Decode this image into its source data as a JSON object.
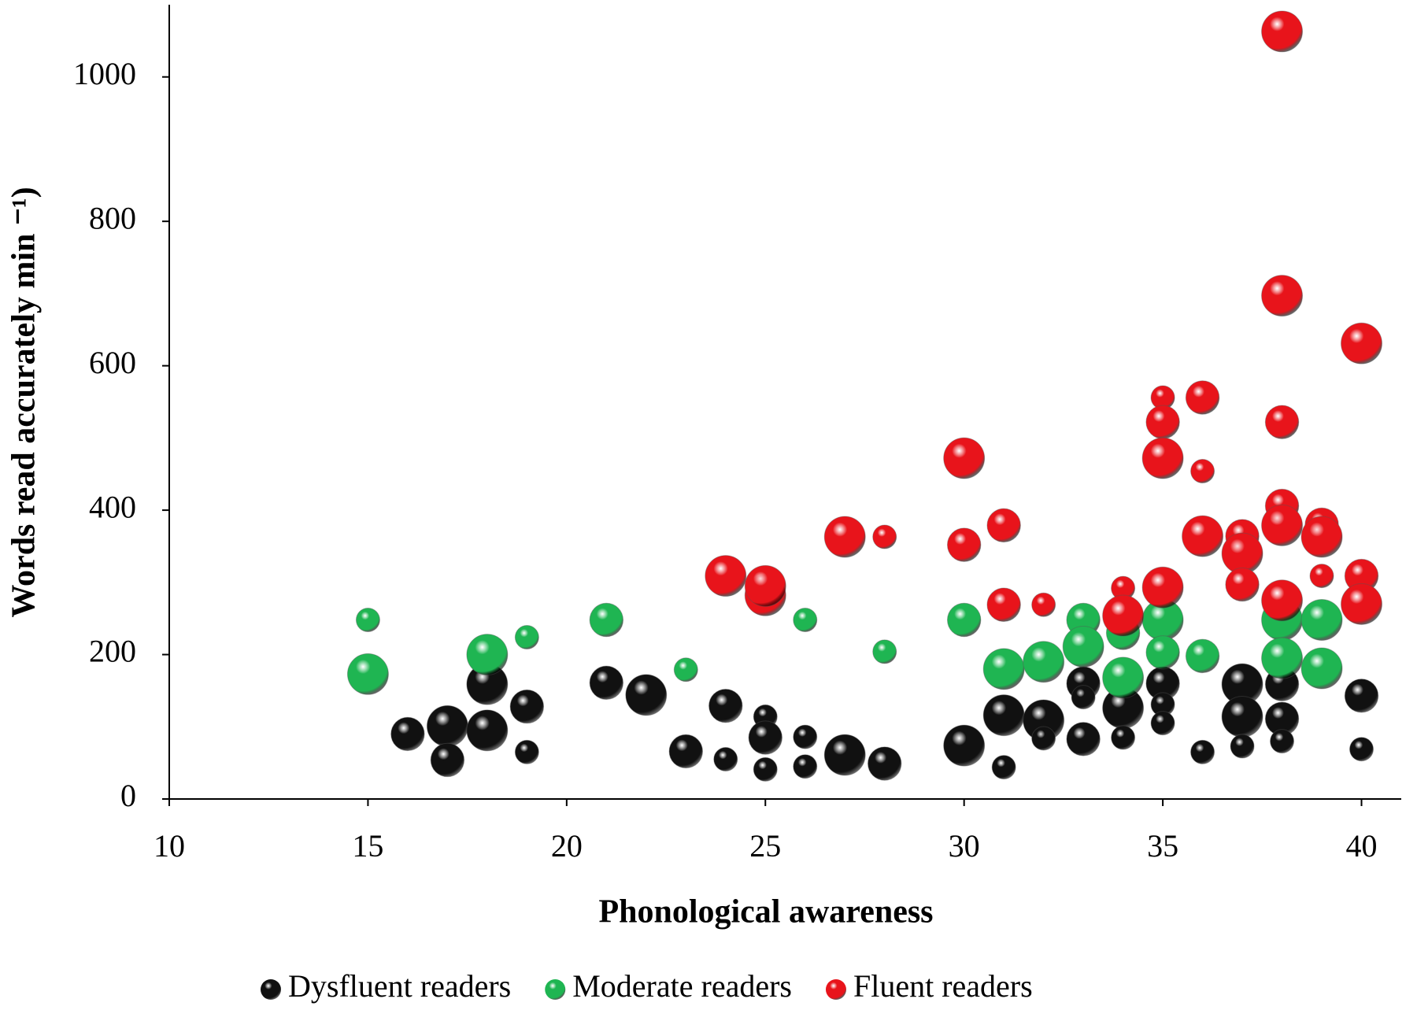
{
  "chart_data": {
    "type": "bubble",
    "x_label": "Phonological awareness",
    "y_label": "Words read accurately min ⁻¹)",
    "xlim": [
      10,
      41
    ],
    "xticks": [
      10,
      15,
      20,
      25,
      30,
      35,
      40
    ],
    "ylim": [
      0,
      1100
    ],
    "yticks": [
      0,
      200,
      400,
      600,
      800,
      1000
    ],
    "legend": "bottom",
    "series": [
      {
        "name": "Dysfluent readers",
        "color": "#111111",
        "x": [
          16,
          17,
          17,
          18,
          18,
          19,
          19,
          21,
          22,
          23,
          24,
          24,
          25,
          25,
          25,
          26,
          26,
          27,
          28,
          30,
          31,
          31,
          32,
          32,
          33,
          33,
          33,
          34,
          34,
          35,
          35,
          35,
          36,
          37,
          37,
          37,
          38,
          38,
          38,
          40,
          40
        ],
        "values": [
          90,
          101,
          54,
          159,
          95,
          128,
          65,
          161,
          144,
          66,
          129,
          55,
          114,
          85,
          41,
          86,
          45,
          61,
          49,
          74,
          116,
          44,
          109,
          84,
          160,
          141,
          83,
          126,
          85,
          160,
          131,
          105,
          65,
          159,
          114,
          73,
          159,
          111,
          80,
          143,
          69
        ],
        "sizes": [
          2,
          3,
          2,
          3,
          3,
          2,
          1,
          2,
          3,
          2,
          2,
          1,
          1,
          2,
          1,
          1,
          1,
          3,
          2,
          3,
          3,
          1,
          3,
          1,
          2,
          1,
          2,
          3,
          1,
          2,
          1,
          1,
          1,
          3,
          3,
          1,
          2,
          2,
          1,
          2,
          1
        ]
      },
      {
        "name": "Moderate readers",
        "color": "#1fb552",
        "x": [
          15,
          15,
          18,
          19,
          21,
          23,
          26,
          28,
          30,
          31,
          32,
          33,
          33,
          34,
          34,
          35,
          35,
          36,
          38,
          38,
          39,
          39
        ],
        "values": [
          248,
          173,
          200,
          224,
          248,
          179,
          248,
          204,
          248,
          180,
          190,
          248,
          211,
          230,
          168,
          248,
          203,
          198,
          248,
          195,
          248,
          181
        ],
        "sizes": [
          1,
          3,
          3,
          1,
          2,
          1,
          1,
          1,
          2,
          3,
          3,
          2,
          3,
          2,
          3,
          3,
          2,
          2,
          3,
          3,
          3,
          3
        ]
      },
      {
        "name": "Fluent readers",
        "color": "#e8141b",
        "x": [
          24,
          25,
          25,
          27,
          28,
          30,
          30,
          31,
          31,
          32,
          34,
          34,
          35,
          35,
          35,
          35,
          36,
          36,
          36,
          37,
          37,
          37,
          38,
          38,
          38,
          38,
          38,
          38,
          39,
          39,
          39,
          40,
          40,
          40
        ],
        "values": [
          309,
          282,
          295,
          363,
          363,
          472,
          352,
          379,
          269,
          269,
          292,
          254,
          556,
          522,
          472,
          293,
          556,
          454,
          364,
          364,
          340,
          297,
          1063,
          697,
          522,
          406,
          379,
          275,
          380,
          363,
          309,
          631,
          309,
          270
        ],
        "sizes": [
          3,
          3,
          3,
          3,
          1,
          3,
          2,
          2,
          2,
          1,
          1,
          3,
          1,
          2,
          3,
          3,
          2,
          1,
          3,
          2,
          3,
          2,
          3,
          3,
          2,
          2,
          3,
          3,
          2,
          3,
          1,
          3,
          2,
          3
        ]
      }
    ]
  }
}
